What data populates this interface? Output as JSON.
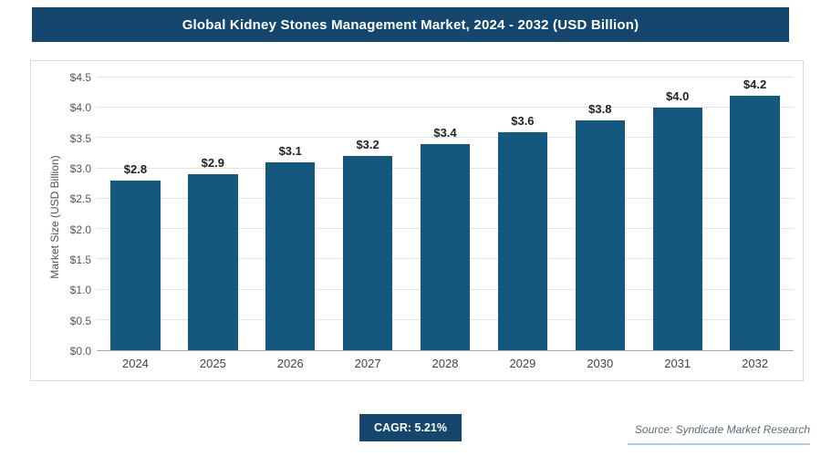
{
  "header": {
    "title": "Global Kidney Stones Management Market, 2024 - 2032 (USD Billion)"
  },
  "footer": {
    "cagr_label": "CAGR: 5.21%",
    "source": "Source: Syndicate Market Research"
  },
  "colors": {
    "header_bg": "#14466e",
    "bar": "#15587f",
    "badge_bg": "#14466e",
    "gridline": "#e4e4e4"
  },
  "chart_data": {
    "type": "bar",
    "title": "Global Kidney Stones Management Market, 2024 - 2032 (USD Billion)",
    "categories": [
      "2024",
      "2025",
      "2026",
      "2027",
      "2028",
      "2029",
      "2030",
      "2031",
      "2032"
    ],
    "values": [
      2.8,
      2.9,
      3.1,
      3.2,
      3.4,
      3.6,
      3.8,
      4.0,
      4.2
    ],
    "data_labels": [
      "$2.8",
      "$2.9",
      "$3.1",
      "$3.2",
      "$3.4",
      "$3.6",
      "$3.8",
      "$4.0",
      "$4.2"
    ],
    "xlabel": "",
    "ylabel": "Market Size (USD Billion)",
    "ylim": [
      0,
      4.5
    ],
    "ytick_step": 0.5,
    "ytick_labels": [
      "$0.0",
      "$0.5",
      "$1.0",
      "$1.5",
      "$2.0",
      "$2.5",
      "$3.0",
      "$3.5",
      "$4.0",
      "$4.5"
    ],
    "grid": true,
    "legend": false,
    "cagr": "5.21%"
  }
}
